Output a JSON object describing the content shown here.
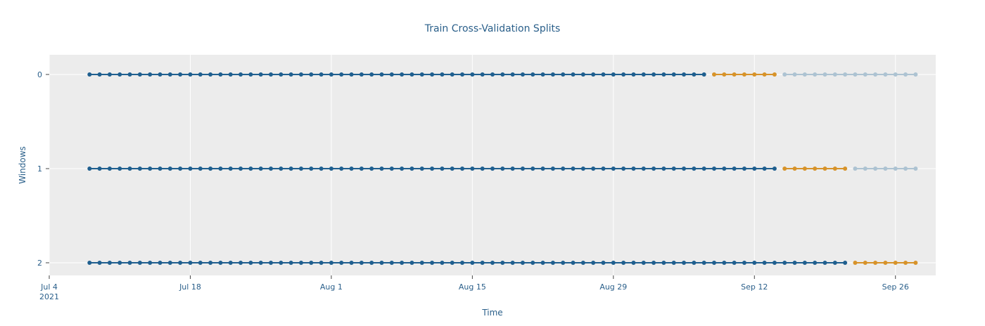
{
  "chart_data": {
    "type": "scatter",
    "mode": "lines+markers",
    "title": "Train Cross-Validation Splits",
    "xlabel": "Time",
    "ylabel": "Windows",
    "x_range": [
      "2021-07-04",
      "2021-09-30"
    ],
    "x_ticks": [
      {
        "date": "2021-07-04",
        "label": "Jul 4",
        "sublabel": "2021"
      },
      {
        "date": "2021-07-18",
        "label": "Jul 18"
      },
      {
        "date": "2021-08-01",
        "label": "Aug 1"
      },
      {
        "date": "2021-08-15",
        "label": "Aug 15"
      },
      {
        "date": "2021-08-29",
        "label": "Aug 29"
      },
      {
        "date": "2021-09-12",
        "label": "Sep 12"
      },
      {
        "date": "2021-09-26",
        "label": "Sep 26"
      }
    ],
    "y_categories": [
      "0",
      "1",
      "2"
    ],
    "grid": true,
    "legend": "none",
    "colors": {
      "train": "#1f5f8f",
      "test": "#d7932a",
      "future": "#adc3d2",
      "plot_bg": "#ececec",
      "grid": "#ffffff"
    },
    "windows": [
      {
        "window": "0",
        "train": [
          "2021-07-08",
          "2021-09-07"
        ],
        "test": [
          "2021-09-08",
          "2021-09-14"
        ],
        "future": [
          "2021-09-15",
          "2021-09-28"
        ]
      },
      {
        "window": "1",
        "train": [
          "2021-07-08",
          "2021-09-14"
        ],
        "test": [
          "2021-09-15",
          "2021-09-21"
        ],
        "future": [
          "2021-09-22",
          "2021-09-28"
        ]
      },
      {
        "window": "2",
        "train": [
          "2021-07-08",
          "2021-09-21"
        ],
        "test": [
          "2021-09-22",
          "2021-09-28"
        ],
        "future": null
      }
    ]
  }
}
